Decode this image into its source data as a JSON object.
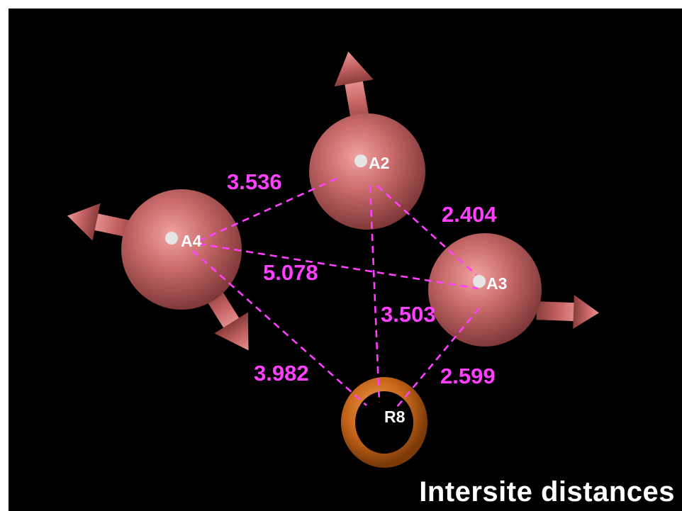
{
  "title": "Intersite distances",
  "colors": {
    "background": "#000000",
    "site_sphere": "#c46464",
    "distance_line": "#ff40ff",
    "distance_text": "#ff40ff",
    "ring": "#d7751c",
    "label": "#ffffff"
  },
  "sites": [
    {
      "id": "A2",
      "label": "A2",
      "kind": "atom",
      "moment_icon": "arrow-icon"
    },
    {
      "id": "A3",
      "label": "A3",
      "kind": "atom",
      "moment_icon": "arrow-icon"
    },
    {
      "id": "A4",
      "label": "A4",
      "kind": "atom",
      "moment_icon": "arrow-icon"
    },
    {
      "id": "R8",
      "label": "R8",
      "kind": "ring",
      "moment_icon": "ring-icon"
    }
  ],
  "distances": [
    {
      "from": "A2",
      "to": "A4",
      "value": "3.536"
    },
    {
      "from": "A2",
      "to": "A3",
      "value": "2.404"
    },
    {
      "from": "A4",
      "to": "A3",
      "value": "5.078"
    },
    {
      "from": "A2",
      "to": "R8",
      "value": "3.503"
    },
    {
      "from": "A4",
      "to": "R8",
      "value": "3.982"
    },
    {
      "from": "A3",
      "to": "R8",
      "value": "2.599"
    }
  ]
}
